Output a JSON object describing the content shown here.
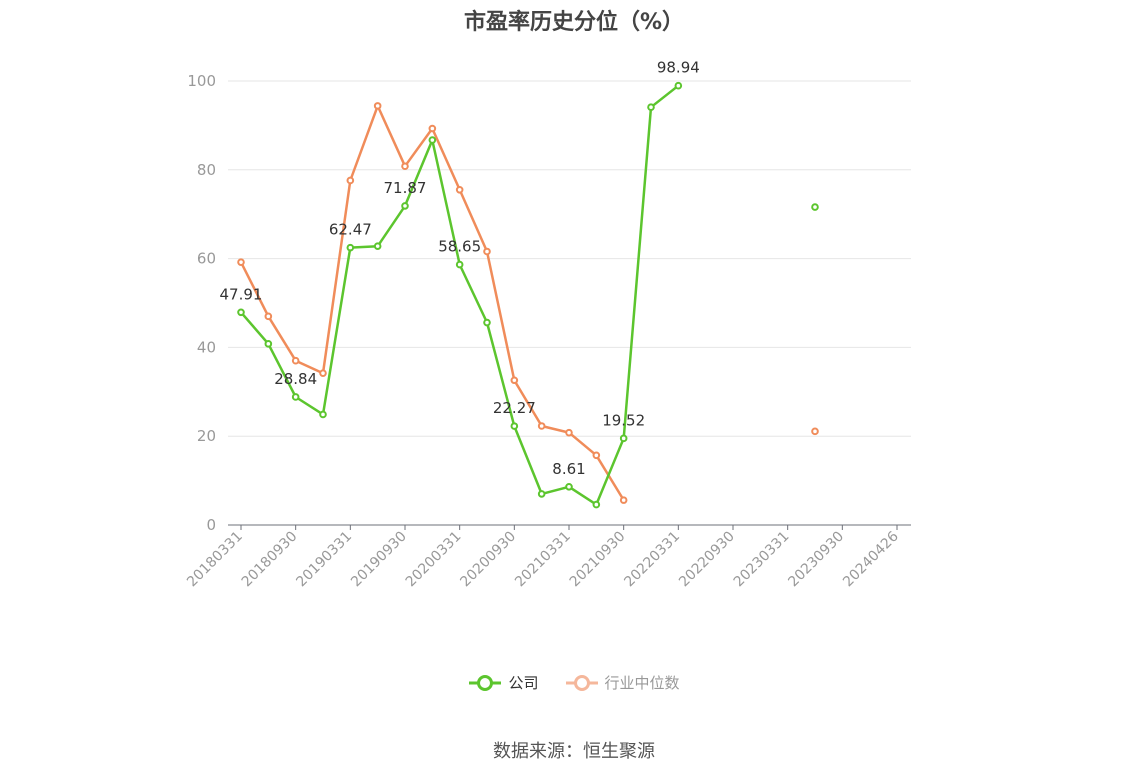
{
  "chart_data": {
    "type": "line",
    "title": "市盈率历史分位（%）",
    "source": "数据来源：恒生聚源",
    "x": [
      "20180331",
      "20180630",
      "20180930",
      "20181231",
      "20190331",
      "20190630",
      "20190930",
      "20191231",
      "20200331",
      "20200630",
      "20200930",
      "20201231",
      "20210331",
      "20210630",
      "20210930",
      "20211231",
      "20220331",
      "20220630",
      "20220930",
      "20221231",
      "20230331",
      "20230630",
      "20230930",
      "20231231",
      "20240426"
    ],
    "x_tick_labels": [
      "20180331",
      "20180930",
      "20190331",
      "20190930",
      "20200331",
      "20200930",
      "20210331",
      "20210930",
      "20220331",
      "20220930",
      "20230331",
      "20230930",
      "20240426"
    ],
    "ylim": [
      0,
      100
    ],
    "yticks": [
      0,
      20,
      40,
      60,
      80,
      100
    ],
    "grid": true,
    "legend_position": "bottom",
    "series": [
      {
        "name": "公司",
        "color": "#5cc52e",
        "values": [
          47.91,
          40.8,
          28.84,
          24.9,
          62.47,
          62.8,
          71.87,
          86.7,
          58.65,
          45.6,
          22.27,
          7.0,
          8.61,
          4.6,
          19.52,
          94.1,
          98.94,
          null,
          null,
          null,
          null,
          71.6,
          null,
          null,
          null
        ],
        "labels": {
          "0": "47.91",
          "2": "28.84",
          "4": "62.47",
          "6": "71.87",
          "8": "58.65",
          "10": "22.27",
          "12": "8.61",
          "14": "19.52",
          "16": "98.94"
        }
      },
      {
        "name": "行业中位数",
        "color": "#f08c5a",
        "values": [
          59.2,
          47.0,
          37.0,
          34.2,
          77.6,
          94.4,
          80.8,
          89.3,
          75.5,
          61.6,
          32.6,
          22.3,
          20.8,
          15.7,
          5.6,
          null,
          null,
          null,
          null,
          null,
          null,
          21.1,
          null,
          null,
          null
        ]
      }
    ]
  }
}
